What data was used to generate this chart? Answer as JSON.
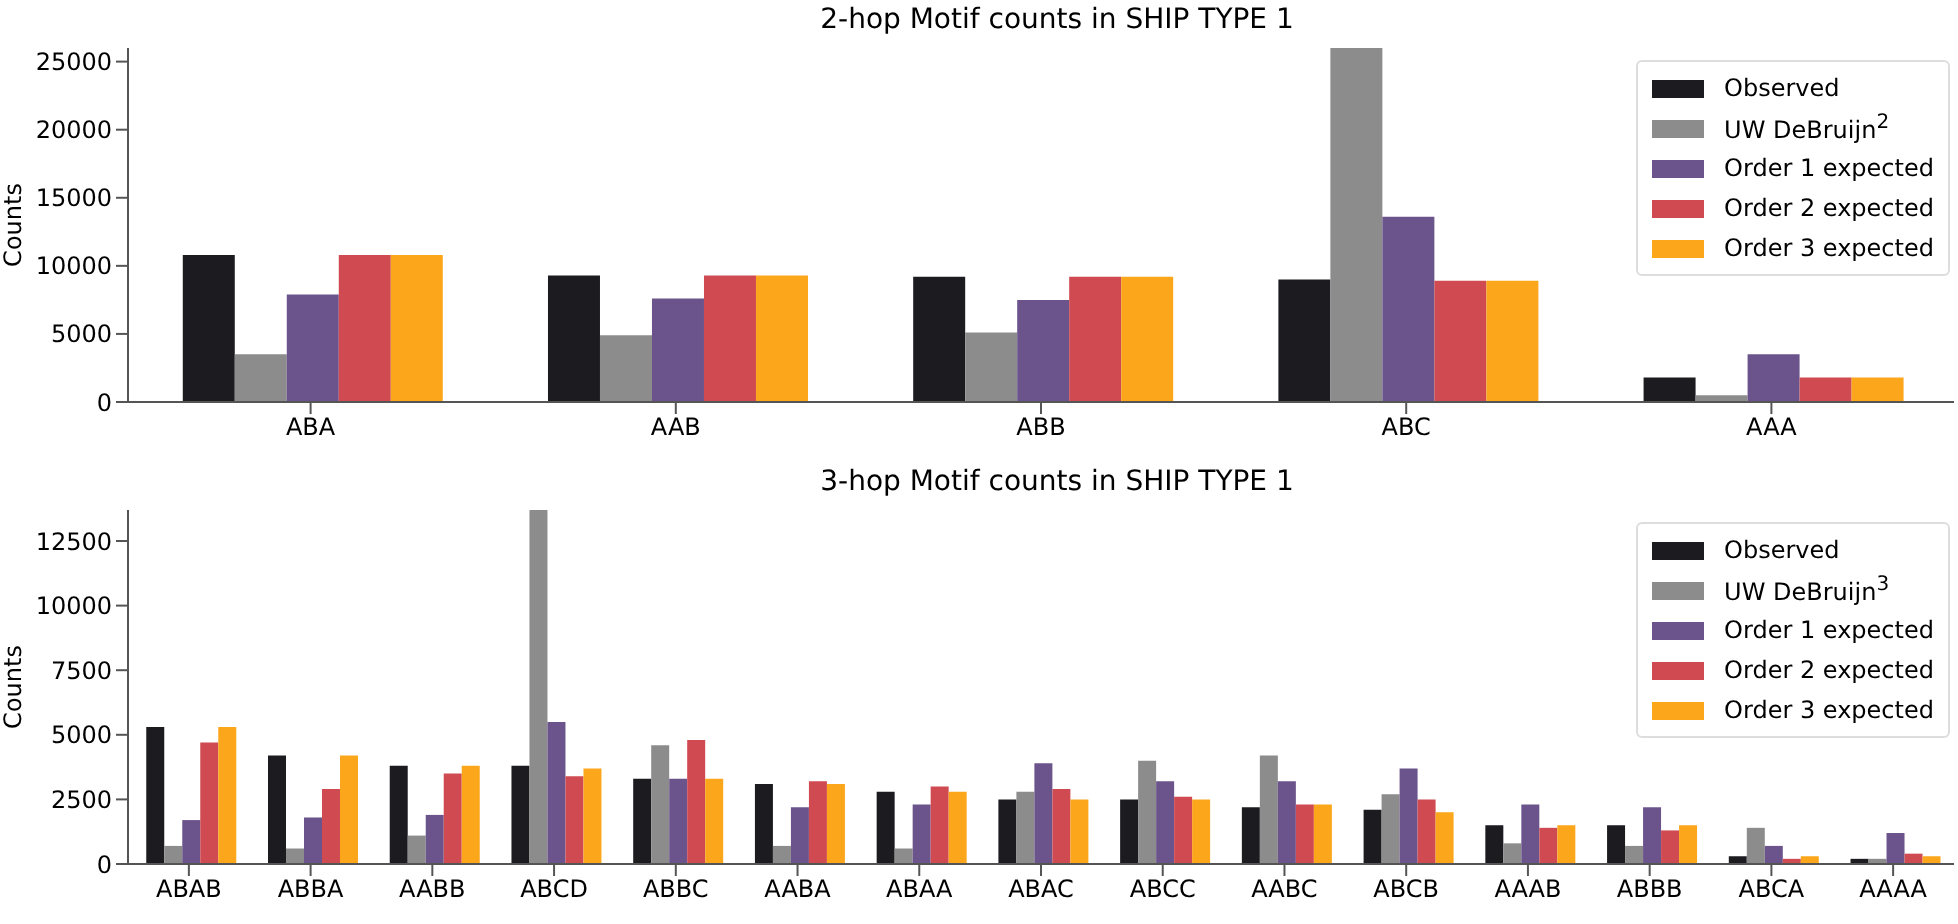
{
  "chart_data": [
    {
      "type": "bar",
      "title": "2-hop Motif counts in SHIP TYPE 1",
      "ylabel": "Counts",
      "categories": [
        "ABA",
        "AAB",
        "ABB",
        "ABC",
        "AAA"
      ],
      "ylim": [
        0,
        26000
      ],
      "yticks": [
        0,
        5000,
        10000,
        15000,
        20000,
        25000
      ],
      "grid": false,
      "legend": "top right",
      "series": [
        {
          "name": "Observed",
          "color": "#1c1b20",
          "values": [
            10800,
            9300,
            9200,
            9000,
            1800
          ]
        },
        {
          "name": "UW DeBruijn$^{2}$",
          "color": "#8c8c8c",
          "values": [
            3500,
            4900,
            5100,
            26000,
            500
          ]
        },
        {
          "name": "Order 1 expected",
          "color": "#6b548b",
          "values": [
            7900,
            7600,
            7500,
            13600,
            3500
          ]
        },
        {
          "name": "Order 2 expected",
          "color": "#d04a52",
          "values": [
            10800,
            9300,
            9200,
            8900,
            1800
          ]
        },
        {
          "name": "Order 3 expected",
          "color": "#fba61b",
          "values": [
            10800,
            9300,
            9200,
            8900,
            1800
          ]
        }
      ]
    },
    {
      "type": "bar",
      "title": "3-hop Motif counts in SHIP TYPE 1",
      "ylabel": "Counts",
      "categories": [
        "ABAB",
        "ABBA",
        "AABB",
        "ABCD",
        "ABBC",
        "AABA",
        "ABAA",
        "ABAC",
        "ABCC",
        "AABC",
        "ABCB",
        "AAAB",
        "ABBB",
        "ABCA",
        "AAAA"
      ],
      "ylim": [
        0,
        13700
      ],
      "yticks": [
        0,
        2500,
        5000,
        7500,
        10000,
        12500
      ],
      "grid": false,
      "legend": "top right",
      "series": [
        {
          "name": "Observed",
          "color": "#1c1b20",
          "values": [
            5300,
            4200,
            3800,
            3800,
            3300,
            3100,
            2800,
            2500,
            2500,
            2200,
            2100,
            1500,
            1500,
            300,
            200
          ]
        },
        {
          "name": "UW DeBruijn$^{3}$",
          "color": "#8c8c8c",
          "values": [
            700,
            600,
            1100,
            13700,
            4600,
            700,
            600,
            2800,
            4000,
            4200,
            2700,
            800,
            700,
            1400,
            200
          ]
        },
        {
          "name": "Order 1 expected",
          "color": "#6b548b",
          "values": [
            1700,
            1800,
            1900,
            5500,
            3300,
            2200,
            2300,
            3900,
            3200,
            3200,
            3700,
            2300,
            2200,
            700,
            1200
          ]
        },
        {
          "name": "Order 2 expected",
          "color": "#d04a52",
          "values": [
            4700,
            2900,
            3500,
            3400,
            4800,
            3200,
            3000,
            2900,
            2600,
            2300,
            2500,
            1400,
            1300,
            200,
            400
          ]
        },
        {
          "name": "Order 3 expected",
          "color": "#fba61b",
          "values": [
            5300,
            4200,
            3800,
            3700,
            3300,
            3100,
            2800,
            2500,
            2500,
            2300,
            2000,
            1500,
            1500,
            300,
            300
          ]
        }
      ]
    }
  ]
}
